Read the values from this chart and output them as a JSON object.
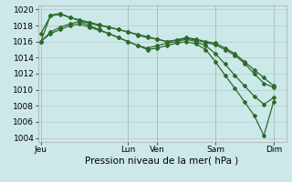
{
  "background_color": "#cde8e8",
  "grid_color": "#b0cccc",
  "line_color": "#2d6a2d",
  "marker_color": "#2d6a2d",
  "xlabel": "Pression niveau de la mer( hPa )",
  "xlabel_fontsize": 7.5,
  "tick_fontsize": 6.5,
  "ylim": [
    1003.5,
    1020.5
  ],
  "yticks": [
    1004,
    1006,
    1008,
    1010,
    1012,
    1014,
    1016,
    1018,
    1020
  ],
  "x_day_labels": [
    "Jeu",
    "Lun",
    "Ven",
    "Sam",
    "Dim"
  ],
  "x_day_positions": [
    0,
    9,
    12,
    18,
    24
  ],
  "xlim": [
    -0.3,
    25.3
  ],
  "series1_x": [
    0,
    1,
    2,
    3,
    4,
    5,
    6,
    7,
    8,
    9,
    10,
    11,
    12,
    13,
    14,
    15,
    16,
    17,
    18,
    19,
    20,
    21,
    22,
    23,
    24
  ],
  "series1_y": [
    1016.0,
    1019.3,
    1019.5,
    1019.0,
    1018.6,
    1018.3,
    1018.0,
    1017.8,
    1017.5,
    1017.2,
    1016.8,
    1016.5,
    1016.3,
    1016.0,
    1016.2,
    1016.5,
    1016.3,
    1016.0,
    1015.8,
    1015.2,
    1014.5,
    1013.5,
    1012.5,
    1011.5,
    1010.5
  ],
  "series2_x": [
    0,
    1,
    2,
    3,
    4,
    5,
    6,
    7,
    8,
    9,
    10,
    11,
    12,
    13,
    14,
    15,
    16,
    17,
    18,
    19,
    20,
    21,
    22,
    23,
    24
  ],
  "series2_y": [
    1017.0,
    1019.2,
    1019.4,
    1019.0,
    1018.7,
    1018.4,
    1018.1,
    1017.8,
    1017.5,
    1017.2,
    1016.9,
    1016.6,
    1016.3,
    1016.0,
    1016.2,
    1016.4,
    1016.2,
    1015.9,
    1015.6,
    1015.0,
    1014.3,
    1013.3,
    1012.0,
    1010.8,
    1010.3
  ],
  "series3_x": [
    0,
    1,
    2,
    3,
    4,
    5,
    6,
    7,
    8,
    9,
    10,
    11,
    12,
    13,
    14,
    15,
    16,
    17,
    18,
    19,
    20,
    21,
    22,
    23,
    24
  ],
  "series3_y": [
    1016.0,
    1017.2,
    1017.8,
    1018.2,
    1018.5,
    1018.0,
    1017.5,
    1017.0,
    1016.5,
    1016.0,
    1015.5,
    1015.2,
    1015.5,
    1015.8,
    1016.0,
    1016.3,
    1016.0,
    1015.5,
    1014.5,
    1013.2,
    1011.8,
    1010.5,
    1009.2,
    1008.2,
    1009.0
  ],
  "series4_x": [
    0,
    1,
    2,
    3,
    4,
    5,
    6,
    7,
    8,
    9,
    10,
    11,
    12,
    13,
    14,
    15,
    16,
    17,
    18,
    19,
    20,
    21,
    22,
    23,
    24
  ],
  "series4_y": [
    1016.0,
    1017.0,
    1017.5,
    1018.0,
    1018.2,
    1017.8,
    1017.4,
    1017.0,
    1016.5,
    1016.0,
    1015.5,
    1015.0,
    1015.2,
    1015.5,
    1015.8,
    1016.0,
    1015.7,
    1015.0,
    1013.5,
    1011.8,
    1010.2,
    1008.5,
    1006.8,
    1004.3,
    1008.5
  ],
  "vline_positions": [
    0,
    9,
    12,
    18,
    24
  ],
  "vline_color": "#888888"
}
